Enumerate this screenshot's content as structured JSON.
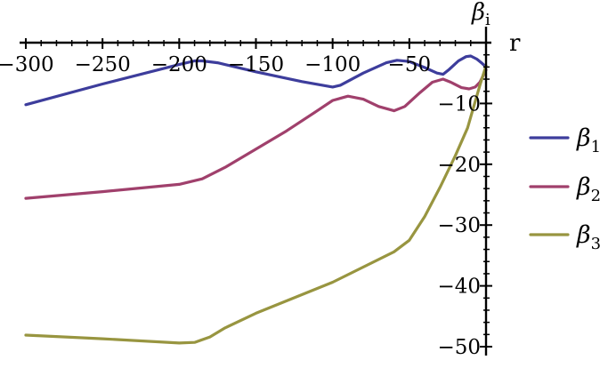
{
  "chart_data": {
    "type": "line",
    "x_axis": {
      "label": "r",
      "range": [
        -300,
        0
      ],
      "major_ticks": [
        -300,
        -250,
        -200,
        -150,
        -100,
        -50
      ],
      "tick_labels": [
        "−300",
        "−250",
        "−200",
        "−150",
        "−100",
        "−50"
      ],
      "minor_step": 10,
      "position": "top"
    },
    "y_axis": {
      "label_base": "β",
      "label_subscript": "i",
      "range": [
        -50,
        0
      ],
      "major_ticks": [
        -10,
        -20,
        -30,
        -40,
        -50
      ],
      "tick_labels": [
        "−10",
        "−20",
        "−30",
        "−40",
        "−50"
      ],
      "minor_step": 2,
      "position": "right"
    },
    "grid": false,
    "legend_position": "right",
    "series": [
      {
        "name": "β1",
        "name_base": "β",
        "name_subscript": "1",
        "color": "#3d3d9c",
        "points": [
          [
            -300,
            -10.2
          ],
          [
            -250,
            -6.8
          ],
          [
            -200,
            -3.6
          ],
          [
            -190,
            -3.0
          ],
          [
            -185,
            -3.0
          ],
          [
            -175,
            -3.3
          ],
          [
            -150,
            -4.8
          ],
          [
            -120,
            -6.4
          ],
          [
            -100,
            -7.3
          ],
          [
            -95,
            -7.0
          ],
          [
            -80,
            -5.0
          ],
          [
            -65,
            -3.3
          ],
          [
            -58,
            -2.9
          ],
          [
            -50,
            -3.1
          ],
          [
            -40,
            -4.1
          ],
          [
            -32,
            -5.0
          ],
          [
            -28,
            -5.2
          ],
          [
            -24,
            -4.4
          ],
          [
            -18,
            -3.0
          ],
          [
            -13,
            -2.3
          ],
          [
            -10,
            -2.2
          ],
          [
            -6,
            -2.7
          ],
          [
            -3,
            -3.3
          ],
          [
            0,
            -4.0
          ]
        ]
      },
      {
        "name": "β2",
        "name_base": "β",
        "name_subscript": "2",
        "color": "#a0406c",
        "points": [
          [
            -300,
            -25.6
          ],
          [
            -250,
            -24.5
          ],
          [
            -200,
            -23.3
          ],
          [
            -185,
            -22.4
          ],
          [
            -170,
            -20.5
          ],
          [
            -150,
            -17.5
          ],
          [
            -130,
            -14.5
          ],
          [
            -110,
            -11.2
          ],
          [
            -100,
            -9.5
          ],
          [
            -90,
            -8.8
          ],
          [
            -80,
            -9.3
          ],
          [
            -70,
            -10.5
          ],
          [
            -60,
            -11.2
          ],
          [
            -53,
            -10.5
          ],
          [
            -43,
            -8.2
          ],
          [
            -35,
            -6.5
          ],
          [
            -28,
            -6.0
          ],
          [
            -23,
            -6.5
          ],
          [
            -16,
            -7.4
          ],
          [
            -11,
            -7.6
          ],
          [
            -7,
            -7.3
          ],
          [
            -4,
            -6.5
          ],
          [
            0,
            -4.5
          ]
        ]
      },
      {
        "name": "β3",
        "name_base": "β",
        "name_subscript": "3",
        "color": "#989540",
        "points": [
          [
            -300,
            -48.1
          ],
          [
            -250,
            -48.7
          ],
          [
            -200,
            -49.4
          ],
          [
            -190,
            -49.3
          ],
          [
            -180,
            -48.4
          ],
          [
            -170,
            -46.9
          ],
          [
            -150,
            -44.5
          ],
          [
            -100,
            -39.4
          ],
          [
            -60,
            -34.4
          ],
          [
            -50,
            -32.5
          ],
          [
            -40,
            -28.6
          ],
          [
            -30,
            -23.8
          ],
          [
            -20,
            -18.6
          ],
          [
            -12,
            -14.0
          ],
          [
            -8,
            -10.5
          ],
          [
            -4,
            -7.0
          ],
          [
            0,
            -3.8
          ]
        ]
      }
    ]
  }
}
